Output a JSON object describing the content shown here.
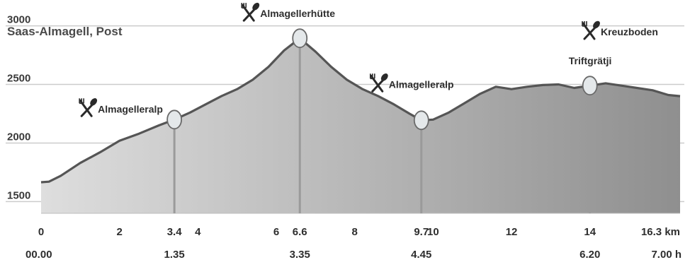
{
  "chart_data": {
    "type": "area",
    "title": "",
    "xlabel": "",
    "ylabel": "",
    "xlim": [
      0,
      16.3
    ],
    "ylim": [
      1400,
      3100
    ],
    "grid": true,
    "start_label": "Saas-Almagell, Post",
    "end_label": "Kreuzboden",
    "y_ticks": [
      {
        "value": 1500,
        "label": "1500"
      },
      {
        "value": 2000,
        "label": "2000"
      },
      {
        "value": 2500,
        "label": "2500"
      },
      {
        "value": 3000,
        "label": "3000"
      }
    ],
    "x_ticks": [
      {
        "value": 0,
        "label": "0"
      },
      {
        "value": 2,
        "label": "2"
      },
      {
        "value": 3.4,
        "label": "3.4"
      },
      {
        "value": 4,
        "label": "4"
      },
      {
        "value": 6,
        "label": "6"
      },
      {
        "value": 6.6,
        "label": "6.6"
      },
      {
        "value": 8,
        "label": "8"
      },
      {
        "value": 9.7,
        "label": "9.7"
      },
      {
        "value": 10,
        "label": "10"
      },
      {
        "value": 12,
        "label": "12"
      },
      {
        "value": 14,
        "label": "14"
      },
      {
        "value": 16.3,
        "label": "16.3 km"
      }
    ],
    "time_ticks": [
      {
        "value": 0,
        "label": "00.00"
      },
      {
        "value": 3.4,
        "label": "1.35"
      },
      {
        "value": 6.6,
        "label": "3.35"
      },
      {
        "value": 9.7,
        "label": "4.45"
      },
      {
        "value": 14,
        "label": "6.20"
      },
      {
        "value": 16.3,
        "label": "7.00 h"
      }
    ],
    "waypoints": [
      {
        "x": 3.4,
        "y": 2200,
        "label": "Almagelleralp",
        "restaurant": true,
        "label_side": "left"
      },
      {
        "x": 6.6,
        "y": 2894,
        "label": "Almagellerhütte",
        "restaurant": true,
        "label_side": "top"
      },
      {
        "x": 9.7,
        "y": 2194,
        "label": "Almagelleralp",
        "restaurant": true,
        "label_side": "upper-right"
      },
      {
        "x": 14,
        "y": 2490,
        "label": "Triftgrätji",
        "restaurant": false,
        "label_side": "top"
      },
      {
        "x": 16.3,
        "y": 2400,
        "label": "Kreuzboden",
        "restaurant": true,
        "label_side": "top-right"
      }
    ],
    "series": [
      {
        "x": [
          0,
          0.2,
          0.5,
          1.0,
          1.5,
          2.0,
          2.5,
          3.0,
          3.4,
          3.8,
          4.2,
          4.6,
          5.0,
          5.4,
          5.8,
          6.2,
          6.6,
          7.0,
          7.4,
          7.8,
          8.2,
          8.6,
          9.0,
          9.4,
          9.7,
          10.0,
          10.4,
          10.8,
          11.2,
          11.6,
          12.0,
          12.4,
          12.8,
          13.2,
          13.6,
          14.0,
          14.4,
          14.8,
          15.2,
          15.6,
          16.0,
          16.3
        ],
        "values": [
          1665,
          1670,
          1720,
          1830,
          1920,
          2020,
          2080,
          2150,
          2200,
          2260,
          2330,
          2400,
          2460,
          2540,
          2650,
          2790,
          2894,
          2780,
          2650,
          2540,
          2460,
          2400,
          2330,
          2250,
          2194,
          2200,
          2260,
          2340,
          2420,
          2480,
          2460,
          2480,
          2495,
          2500,
          2470,
          2490,
          2510,
          2490,
          2470,
          2450,
          2410,
          2400
        ]
      }
    ],
    "colors": {
      "fill_light": "#dedede",
      "fill_dark": "#8f8f8f",
      "line": "#555555",
      "grid": "#cccccc",
      "marker_fill": "#e4e8ea",
      "marker_stroke": "#6a6a6a",
      "pole": "#9a9a9a"
    }
  }
}
